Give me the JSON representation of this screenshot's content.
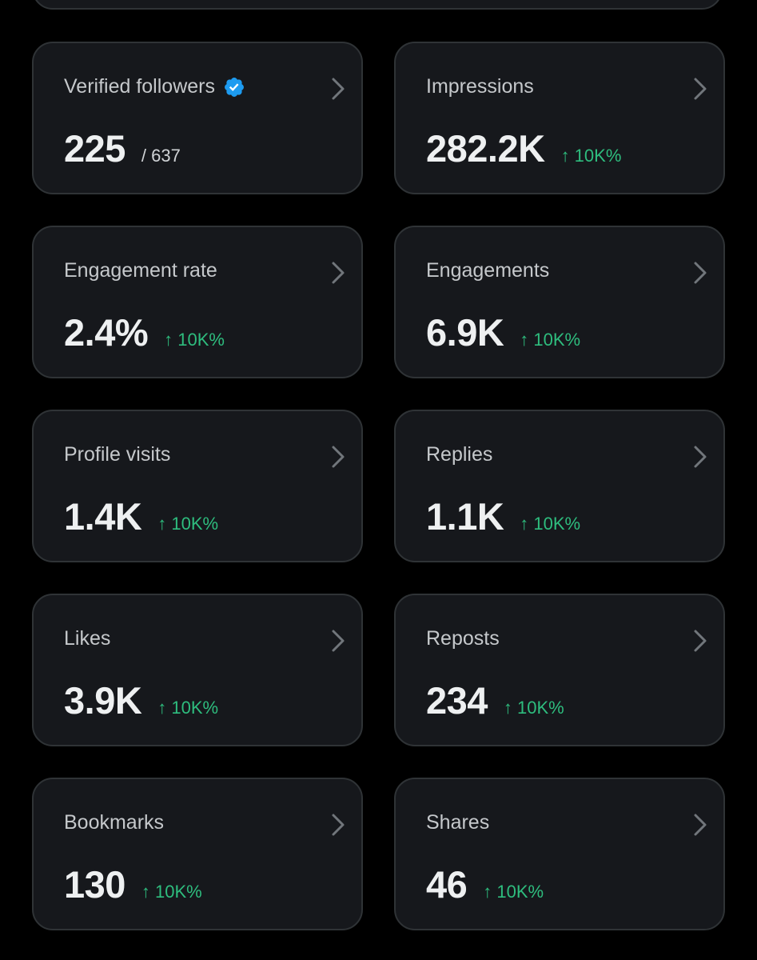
{
  "cards": [
    {
      "title": "Verified followers",
      "value": "225",
      "sub": "/ 637",
      "change": "",
      "verified": true
    },
    {
      "title": "Impressions",
      "value": "282.2K",
      "sub": "",
      "change": "↑ 10K%"
    },
    {
      "title": "Engagement rate",
      "value": "2.4%",
      "sub": "",
      "change": "↑ 10K%"
    },
    {
      "title": "Engagements",
      "value": "6.9K",
      "sub": "",
      "change": "↑ 10K%"
    },
    {
      "title": "Profile visits",
      "value": "1.4K",
      "sub": "",
      "change": "↑ 10K%"
    },
    {
      "title": "Replies",
      "value": "1.1K",
      "sub": "",
      "change": "↑ 10K%"
    },
    {
      "title": "Likes",
      "value": "3.9K",
      "sub": "",
      "change": "↑ 10K%"
    },
    {
      "title": "Reposts",
      "value": "234",
      "sub": "",
      "change": "↑ 10K%"
    },
    {
      "title": "Bookmarks",
      "value": "130",
      "sub": "",
      "change": "↑ 10K%"
    },
    {
      "title": "Shares",
      "value": "46",
      "sub": "",
      "change": "↑ 10K%"
    }
  ],
  "icons": {
    "verified": "verified-badge-icon",
    "chevron": "chevron-right-icon",
    "change_arrow": "arrow-up"
  },
  "colors": {
    "background": "#000000",
    "card": "#16181c",
    "card_border": "#2f3336",
    "positive_change": "#2ebd7e",
    "verified_badge": "#1d9bf0"
  }
}
